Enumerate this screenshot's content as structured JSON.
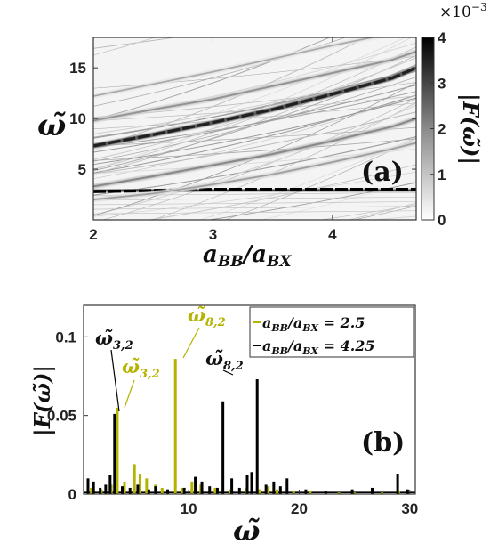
{
  "chart_data": [
    {
      "panel": "(a)",
      "type": "heatmap",
      "xlabel": "a_BB/a_BX",
      "ylabel": "ω̃",
      "colorbar_label": "|F(ω̃)|",
      "colorbar_scale": "×10⁻³",
      "colorbar_range": [
        0,
        4
      ],
      "colorbar_ticks": [
        "0",
        "1",
        "2",
        "3",
        "4"
      ],
      "xlim": [
        2.0,
        4.7
      ],
      "ylim": [
        0,
        18
      ],
      "x_ticks": [
        "2",
        "3",
        "4"
      ],
      "y_ticks": [
        "5",
        "10",
        "15"
      ],
      "colormap": "gray_r",
      "ridges": [
        {
          "x": [
            2.0,
            2.5,
            3.0,
            3.5,
            4.0,
            4.5,
            4.7
          ],
          "y": [
            2.8,
            2.9,
            3.0,
            3.0,
            3.0,
            3.0,
            3.0
          ],
          "strength": 1.0
        },
        {
          "x": [
            2.0,
            2.5,
            3.0,
            3.5,
            4.0,
            4.5,
            4.7
          ],
          "y": [
            7.3,
            8.4,
            9.6,
            10.9,
            12.4,
            14.0,
            15.0
          ],
          "strength": 0.85
        },
        {
          "x": [
            2.0,
            2.5,
            3.0,
            3.5,
            4.0,
            4.5,
            4.7
          ],
          "y": [
            3.3,
            4.3,
            5.4,
            6.5,
            7.8,
            9.2,
            10.0
          ],
          "strength": 0.35
        },
        {
          "x": [
            2.0,
            2.5,
            3.0,
            3.5,
            4.0,
            4.5,
            4.7
          ],
          "y": [
            9.8,
            10.9,
            11.9,
            13.2,
            14.5,
            15.8,
            16.6
          ],
          "strength": 0.3
        },
        {
          "x": [
            2.0,
            2.5,
            3.0,
            3.5,
            4.0,
            4.5,
            4.7
          ],
          "y": [
            2.0,
            2.6,
            3.5,
            4.5,
            5.7,
            7.0,
            7.6
          ],
          "strength": 0.25
        },
        {
          "x": [
            2.0,
            2.5,
            3.0,
            3.5,
            4.0,
            4.5,
            4.7
          ],
          "y": [
            12.2,
            13.4,
            14.6,
            15.9,
            17.2,
            18.4,
            18.8
          ],
          "strength": 0.2
        }
      ]
    },
    {
      "panel": "(b)",
      "type": "bar",
      "xlabel": "ω̃",
      "ylabel": "|F(ω̃)|",
      "xlim": [
        0.5,
        30.5
      ],
      "ylim": [
        0,
        0.12
      ],
      "x_ticks": [
        "10",
        "20",
        "30"
      ],
      "y_ticks": [
        "0",
        "0.05",
        "0.1"
      ],
      "series": [
        {
          "name": "a_BB/a_BX = 2.5",
          "color": "#b3b300",
          "x": [
            1.2,
            2.1,
            3.0,
            3.55,
            4.2,
            5.1,
            5.6,
            6.2,
            7.0,
            7.6,
            8.8,
            9.4,
            10.3,
            11.1,
            12.4,
            13.8,
            14.6,
            15.2,
            16.4,
            17.2,
            18.0,
            19.5,
            21.0,
            23.6,
            25.0,
            27.5,
            29.0
          ],
          "y": [
            0.004,
            0.003,
            0.006,
            0.055,
            0.008,
            0.019,
            0.013,
            0.01,
            0.006,
            0.004,
            0.086,
            0.004,
            0.008,
            0.006,
            0.004,
            0.003,
            0.002,
            0.004,
            0.003,
            0.005,
            0.003,
            0.002,
            0.002,
            0.001,
            0.001,
            0.001,
            0.002
          ]
        },
        {
          "name": "a_BB/a_BX = 4.25",
          "color": "#000000",
          "x": [
            0.9,
            1.4,
            2.0,
            2.5,
            2.9,
            3.3,
            4.0,
            4.7,
            5.4,
            6.4,
            7.0,
            8.1,
            9.6,
            10.6,
            11.2,
            11.9,
            12.6,
            13.1,
            13.9,
            14.6,
            15.3,
            15.7,
            16.2,
            17.0,
            17.7,
            18.3,
            18.9,
            20.6,
            22.4,
            24.8,
            26.6,
            28.9,
            29.8
          ],
          "y": [
            0.01,
            0.008,
            0.004,
            0.006,
            0.012,
            0.051,
            0.005,
            0.004,
            0.006,
            0.003,
            0.005,
            0.003,
            0.004,
            0.011,
            0.008,
            0.005,
            0.004,
            0.059,
            0.01,
            0.004,
            0.012,
            0.014,
            0.073,
            0.006,
            0.008,
            0.005,
            0.01,
            0.003,
            0.002,
            0.003,
            0.004,
            0.013,
            0.003
          ]
        }
      ],
      "annotations": [
        {
          "text": "ω̃₈,₂",
          "color": "#b3b300",
          "points_to_x": 8.8
        },
        {
          "text": "ω̃₃,₂",
          "color": "#b3b300",
          "points_to_x": 3.55
        },
        {
          "text": "ω̃₃,₂",
          "color": "#000000",
          "points_to_x": 3.3
        },
        {
          "text": "ω̃₈,₂",
          "color": "#000000",
          "points_to_x": 13.1
        }
      ]
    }
  ],
  "legend_b": {
    "entry1": "a",
    "entry1_sub": "BB",
    "entry1_mid": "/a",
    "entry1_sub2": "BX",
    "entry1_val": " = 2.5",
    "entry2": "a",
    "entry2_sub": "BB",
    "entry2_mid": "/a",
    "entry2_sub2": "BX",
    "entry2_val": " = 4.25"
  },
  "labels": {
    "panel_a": "(a)",
    "panel_b": "(b)",
    "colorbar_exp_base": "×10",
    "colorbar_exp_power": "−3",
    "colorbar_title": "|F(ω̃)|",
    "xlabel_a_main": "a",
    "xlabel_a_sub1": "BB",
    "xlabel_a_slash": "/a",
    "xlabel_a_sub2": "BX",
    "ylabel_a": "ω̃",
    "ylabel_b": "|F(ω̃)|",
    "xlabel_b": "ω̃",
    "ann_y82_main": "ω̃",
    "ann_y82_sub": "8,2",
    "ann_y32_main": "ω̃",
    "ann_y32_sub": "3,2",
    "ann_k32_main": "ω̃",
    "ann_k32_sub": "3,2",
    "ann_k82_main": "ω̃",
    "ann_k82_sub": "8,2"
  }
}
